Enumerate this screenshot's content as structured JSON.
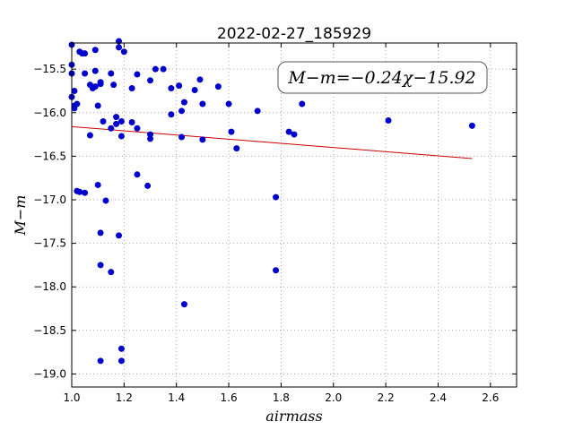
{
  "chart_data": {
    "type": "scatter",
    "title": "2022-02-27_185929",
    "xlabel": "airmass",
    "ylabel": "M−m",
    "xlim": [
      1.0,
      2.7
    ],
    "ylim": [
      -19.15,
      -15.2
    ],
    "y_inverted": true,
    "xticks": [
      1.0,
      1.2,
      1.4,
      1.6,
      1.8,
      2.0,
      2.2,
      2.4,
      2.6
    ],
    "xtick_labels": [
      "1.0",
      "1.2",
      "1.4",
      "1.6",
      "1.8",
      "2.0",
      "2.2",
      "2.4",
      "2.6"
    ],
    "yticks": [
      -15.5,
      -16.0,
      -16.5,
      -17.0,
      -17.5,
      -18.0,
      -18.5,
      -19.0
    ],
    "ytick_labels": [
      "−15.5",
      "−16.0",
      "−16.5",
      "−17.0",
      "−17.5",
      "−18.0",
      "−18.5",
      "−19.0"
    ],
    "grid": true,
    "annotation": "M−m=−0.24χ−15.92",
    "annotation_location": "top-right",
    "point_color": "#0000cc",
    "line_color": "#cc0000",
    "fit": {
      "slope": -0.24,
      "intercept": -15.92,
      "x_range": [
        1.0,
        2.53
      ]
    },
    "points": [
      [
        1.0,
        -15.22
      ],
      [
        1.0,
        -15.45
      ],
      [
        1.0,
        -15.55
      ],
      [
        1.01,
        -15.75
      ],
      [
        1.0,
        -15.82
      ],
      [
        1.01,
        -15.92
      ],
      [
        1.01,
        -15.95
      ],
      [
        1.02,
        -15.9
      ],
      [
        1.03,
        -15.3
      ],
      [
        1.04,
        -15.32
      ],
      [
        1.05,
        -15.32
      ],
      [
        1.05,
        -15.55
      ],
      [
        1.07,
        -15.68
      ],
      [
        1.08,
        -15.72
      ],
      [
        1.09,
        -15.7
      ],
      [
        1.09,
        -15.28
      ],
      [
        1.09,
        -15.52
      ],
      [
        1.1,
        -15.92
      ],
      [
        1.11,
        -15.65
      ],
      [
        1.11,
        -15.67
      ],
      [
        1.15,
        -15.55
      ],
      [
        1.16,
        -15.68
      ],
      [
        1.18,
        -15.18
      ],
      [
        1.18,
        -15.25
      ],
      [
        1.2,
        -15.3
      ],
      [
        1.19,
        -16.1
      ],
      [
        1.17,
        -16.05
      ],
      [
        1.17,
        -16.13
      ],
      [
        1.12,
        -16.1
      ],
      [
        1.07,
        -16.26
      ],
      [
        1.15,
        -16.18
      ],
      [
        1.19,
        -16.27
      ],
      [
        1.23,
        -16.11
      ],
      [
        1.25,
        -16.18
      ],
      [
        1.23,
        -15.72
      ],
      [
        1.25,
        -15.56
      ],
      [
        1.3,
        -15.63
      ],
      [
        1.32,
        -15.5
      ],
      [
        1.35,
        -15.5
      ],
      [
        1.3,
        -16.25
      ],
      [
        1.3,
        -16.3
      ],
      [
        1.38,
        -15.72
      ],
      [
        1.41,
        -15.69
      ],
      [
        1.38,
        -16.02
      ],
      [
        1.42,
        -15.98
      ],
      [
        1.43,
        -15.88
      ],
      [
        1.42,
        -16.28
      ],
      [
        1.47,
        -15.74
      ],
      [
        1.49,
        -15.62
      ],
      [
        1.5,
        -15.9
      ],
      [
        1.5,
        -16.31
      ],
      [
        1.56,
        -15.7
      ],
      [
        1.6,
        -15.9
      ],
      [
        1.61,
        -16.22
      ],
      [
        1.63,
        -16.41
      ],
      [
        1.71,
        -15.98
      ],
      [
        1.83,
        -16.22
      ],
      [
        1.85,
        -16.25
      ],
      [
        1.88,
        -15.9
      ],
      [
        2.21,
        -16.09
      ],
      [
        2.53,
        -16.15
      ],
      [
        1.02,
        -16.9
      ],
      [
        1.03,
        -16.91
      ],
      [
        1.05,
        -16.92
      ],
      [
        1.1,
        -16.83
      ],
      [
        1.13,
        -17.01
      ],
      [
        1.25,
        -16.71
      ],
      [
        1.29,
        -16.84
      ],
      [
        1.78,
        -16.97
      ],
      [
        1.11,
        -17.38
      ],
      [
        1.18,
        -17.41
      ],
      [
        1.11,
        -17.75
      ],
      [
        1.15,
        -17.83
      ],
      [
        1.78,
        -17.81
      ],
      [
        1.43,
        -18.2
      ],
      [
        1.19,
        -18.71
      ],
      [
        1.11,
        -18.85
      ],
      [
        1.19,
        -18.85
      ]
    ]
  }
}
